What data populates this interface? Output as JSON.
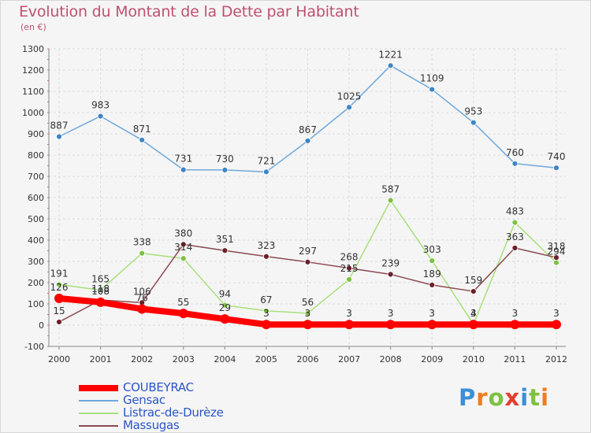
{
  "header": {
    "title": "Evolution du Montant de la Dette par Habitant",
    "unit": "(en €)"
  },
  "logo": {
    "text": "Proxiti",
    "colors": [
      "#3b8fd6",
      "#f07c1e",
      "#7cc142",
      "#e63c2f",
      "#3b8fd6",
      "#7cc142",
      "#f07c1e"
    ]
  },
  "chart_data": {
    "type": "line",
    "title": "Evolution du Montant de la Dette par Habitant",
    "ylabel": "(en €)",
    "xlabel": "",
    "categories": [
      "2000",
      "2001",
      "2002",
      "2003",
      "2004",
      "2005",
      "2006",
      "2007",
      "2008",
      "2009",
      "2010",
      "2011",
      "2012"
    ],
    "ylim": [
      -100,
      1300
    ],
    "yticks": [
      -100,
      0,
      100,
      200,
      300,
      400,
      500,
      600,
      700,
      800,
      900,
      1000,
      1100,
      1200,
      1300
    ],
    "grid": true,
    "legend": "bottom-left",
    "series": [
      {
        "name": "COUBEYRAC",
        "color": "#ff0000",
        "markerColor": "#ff0000",
        "values": [
          126,
          108,
          76,
          55,
          29,
          3,
          3,
          3,
          3,
          3,
          3,
          3,
          3
        ]
      },
      {
        "name": "Gensac",
        "color": "#6fa8dc",
        "markerColor": "#3d85c6",
        "values": [
          887,
          983,
          871,
          731,
          730,
          721,
          867,
          1025,
          1221,
          1109,
          953,
          760,
          740
        ]
      },
      {
        "name": "Listrac-de-Durèze",
        "color": "#a8e07a",
        "markerColor": "#7cc142",
        "values": [
          191,
          165,
          338,
          314,
          94,
          67,
          56,
          215,
          587,
          303,
          4,
          483,
          294
        ]
      },
      {
        "name": "Massugas",
        "color": "#8b4a52",
        "markerColor": "#6b1f2a",
        "values": [
          15,
          118,
          106,
          380,
          351,
          323,
          297,
          268,
          239,
          189,
          159,
          363,
          318
        ]
      }
    ]
  }
}
